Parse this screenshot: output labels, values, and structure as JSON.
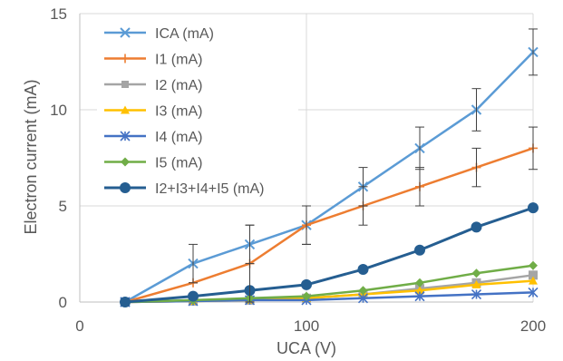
{
  "chart_data": {
    "type": "line",
    "title": "",
    "xlabel": "UCA (V)",
    "ylabel": "Electron current (mA)",
    "xlim": [
      0,
      200
    ],
    "ylim": [
      0,
      15
    ],
    "x_ticks": [
      "0",
      "100",
      "200"
    ],
    "y_ticks": [
      "0",
      "5",
      "10",
      "15"
    ],
    "grid": "major gridlines on",
    "legend_position": "top-left, inside plot",
    "x": [
      20,
      50,
      75,
      100,
      125,
      150,
      175,
      200
    ],
    "series": [
      {
        "name": "ICA (mA)",
        "color": "#5B9BD5",
        "marker": "x",
        "values": [
          0,
          2,
          3,
          4,
          6,
          8,
          10,
          13
        ],
        "error": [
          0,
          1,
          1,
          1,
          1,
          1.1,
          1.1,
          1.2
        ]
      },
      {
        "name": "I1 (mA)",
        "color": "#ED7D31",
        "marker": "plus",
        "values": [
          0,
          1,
          2,
          4,
          5,
          6,
          7,
          8
        ],
        "error": [
          0,
          0,
          2,
          1,
          1,
          1,
          1,
          1.1
        ]
      },
      {
        "name": "I2 (mA)",
        "color": "#A5A5A5",
        "marker": "square",
        "values": [
          0,
          0.05,
          0.1,
          0.2,
          0.4,
          0.7,
          1.0,
          1.4
        ]
      },
      {
        "name": "I3 (mA)",
        "color": "#FFC000",
        "marker": "triangle",
        "values": [
          0,
          0.05,
          0.1,
          0.2,
          0.4,
          0.6,
          0.9,
          1.1
        ]
      },
      {
        "name": "I4 (mA)",
        "color": "#4472C4",
        "marker": "star",
        "values": [
          0,
          0.05,
          0.1,
          0.1,
          0.2,
          0.3,
          0.4,
          0.5
        ]
      },
      {
        "name": "I5 (mA)",
        "color": "#70AD47",
        "marker": "diamond",
        "values": [
          0,
          0.1,
          0.2,
          0.3,
          0.6,
          1.0,
          1.5,
          1.9
        ]
      },
      {
        "name": "I2+I3+I4+I5 (mA)",
        "color": "#255E91",
        "marker": "circle",
        "values": [
          0,
          0.3,
          0.6,
          0.9,
          1.7,
          2.7,
          3.9,
          4.9
        ]
      }
    ]
  }
}
